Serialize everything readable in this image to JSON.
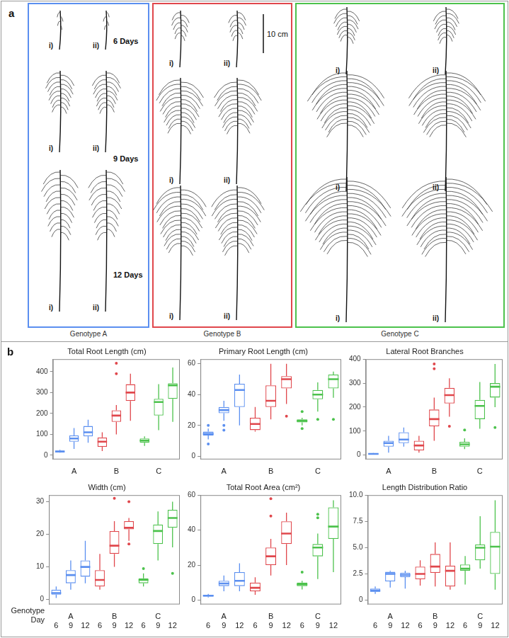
{
  "panel_a": {
    "letter": "a",
    "scale_bar": "10 cm",
    "days": [
      "6 Days",
      "9 Days",
      "12 Days"
    ],
    "replicates": [
      "i)",
      "ii)"
    ],
    "genotypes": [
      {
        "name": "Genotype A",
        "color": "#5b8ff0"
      },
      {
        "name": "Genotype B",
        "color": "#e0474c"
      },
      {
        "name": "Genotype C",
        "color": "#4cc24c"
      }
    ]
  },
  "panel_b": {
    "letter": "b",
    "x_key": {
      "genotype_label": "Genotype",
      "day_label": "Day",
      "days": [
        6,
        9,
        12,
        6,
        9,
        12,
        6,
        9,
        12
      ]
    }
  },
  "chart_data": [
    {
      "type": "boxplot",
      "title": "Total Root Length (cm)",
      "categories": [
        null,
        "A",
        null,
        null,
        "B",
        null,
        null,
        "C",
        null
      ],
      "colors": [
        "#5b8ff0",
        "#5b8ff0",
        "#5b8ff0",
        "#e0474c",
        "#e0474c",
        "#e0474c",
        "#4cc24c",
        "#4cc24c",
        "#4cc24c"
      ],
      "boxes": [
        {
          "min": 12,
          "q1": 15,
          "median": 18,
          "q3": 22,
          "max": 26,
          "outliers": []
        },
        {
          "min": 30,
          "q1": 65,
          "median": 80,
          "q3": 95,
          "max": 130,
          "outliers": []
        },
        {
          "min": 60,
          "q1": 90,
          "median": 110,
          "q3": 140,
          "max": 170,
          "outliers": []
        },
        {
          "min": 20,
          "q1": 40,
          "median": 65,
          "q3": 85,
          "max": 110,
          "outliers": []
        },
        {
          "min": 100,
          "q1": 160,
          "median": 190,
          "q3": 215,
          "max": 240,
          "outliers": [
            390,
            440
          ]
        },
        {
          "min": 165,
          "q1": 260,
          "median": 300,
          "q3": 340,
          "max": 390,
          "outliers": []
        },
        {
          "min": 45,
          "q1": 60,
          "median": 70,
          "q3": 80,
          "max": 90,
          "outliers": []
        },
        {
          "min": 120,
          "q1": 190,
          "median": 255,
          "q3": 270,
          "max": 340,
          "outliers": []
        },
        {
          "min": 160,
          "q1": 270,
          "median": 335,
          "q3": 345,
          "max": 420,
          "outliers": []
        }
      ],
      "ylim": [
        -20,
        460
      ],
      "yticks": [
        0,
        100,
        200,
        300,
        400
      ],
      "grid": false
    },
    {
      "type": "boxplot",
      "title": "Primary Root Length (cm)",
      "categories": [
        null,
        "A",
        null,
        null,
        "B",
        null,
        null,
        "C",
        null
      ],
      "colors": [
        "#5b8ff0",
        "#5b8ff0",
        "#5b8ff0",
        "#e0474c",
        "#e0474c",
        "#e0474c",
        "#4cc24c",
        "#4cc24c",
        "#4cc24c"
      ],
      "boxes": [
        {
          "min": 11,
          "q1": 13.5,
          "median": 14.5,
          "q3": 16,
          "max": 18,
          "outliers": [
            20,
            8
          ]
        },
        {
          "min": 23,
          "q1": 28,
          "median": 30,
          "q3": 32,
          "max": 36,
          "outliers": [
            20,
            17
          ]
        },
        {
          "min": 20,
          "q1": 32,
          "median": 43,
          "q3": 47,
          "max": 53,
          "outliers": []
        },
        {
          "min": 16,
          "q1": 17,
          "median": 21,
          "q3": 25,
          "max": 32,
          "outliers": []
        },
        {
          "min": 24,
          "q1": 32,
          "median": 36,
          "q3": 46,
          "max": 60,
          "outliers": []
        },
        {
          "min": 34,
          "q1": 44,
          "median": 50,
          "q3": 52,
          "max": 60,
          "outliers": [
            26
          ]
        },
        {
          "min": 20,
          "q1": 22,
          "median": 23,
          "q3": 24,
          "max": 25,
          "outliers": [
            29,
            18
          ]
        },
        {
          "min": 29,
          "q1": 37,
          "median": 40,
          "q3": 43,
          "max": 48,
          "outliers": [
            24
          ]
        },
        {
          "min": 38,
          "q1": 44,
          "median": 50,
          "q3": 53,
          "max": 55,
          "outliers": [
            24
          ]
        }
      ],
      "ylim": [
        -2,
        63
      ],
      "yticks": [
        0,
        20,
        40,
        60
      ],
      "grid": false
    },
    {
      "type": "boxplot",
      "title": "Lateral Root Branches",
      "categories": [
        null,
        "A",
        null,
        null,
        "B",
        null,
        null,
        "C",
        null
      ],
      "colors": [
        "#5b8ff0",
        "#5b8ff0",
        "#5b8ff0",
        "#e0474c",
        "#e0474c",
        "#e0474c",
        "#4cc24c",
        "#4cc24c",
        "#4cc24c"
      ],
      "boxes": [
        {
          "min": 2,
          "q1": 3,
          "median": 5,
          "q3": 7,
          "max": 9,
          "outliers": []
        },
        {
          "min": 10,
          "q1": 35,
          "median": 50,
          "q3": 60,
          "max": 80,
          "outliers": []
        },
        {
          "min": 35,
          "q1": 50,
          "median": 65,
          "q3": 95,
          "max": 115,
          "outliers": []
        },
        {
          "min": 10,
          "q1": 20,
          "median": 40,
          "q3": 60,
          "max": 80,
          "outliers": []
        },
        {
          "min": 60,
          "q1": 120,
          "median": 150,
          "q3": 190,
          "max": 240,
          "outliers": [
            360,
            380
          ]
        },
        {
          "min": 160,
          "q1": 215,
          "median": 250,
          "q3": 280,
          "max": 320,
          "outliers": [
            120
          ]
        },
        {
          "min": 25,
          "q1": 35,
          "median": 45,
          "q3": 55,
          "max": 70,
          "outliers": [
            105
          ]
        },
        {
          "min": 110,
          "q1": 150,
          "median": 205,
          "q3": 230,
          "max": 305,
          "outliers": []
        },
        {
          "min": 200,
          "q1": 240,
          "median": 285,
          "q3": 300,
          "max": 380,
          "outliers": [
            115
          ]
        }
      ],
      "ylim": [
        -18,
        400
      ],
      "yticks": [
        0,
        100,
        200,
        300,
        400
      ],
      "grid": false
    },
    {
      "type": "boxplot",
      "title": "Width (cm)",
      "categories": [
        null,
        "A",
        null,
        null,
        "B",
        null,
        null,
        "C",
        null
      ],
      "colors": [
        "#5b8ff0",
        "#5b8ff0",
        "#5b8ff0",
        "#e0474c",
        "#e0474c",
        "#e0474c",
        "#4cc24c",
        "#4cc24c",
        "#4cc24c"
      ],
      "boxes": [
        {
          "min": 0.5,
          "q1": 1.5,
          "median": 2,
          "q3": 3,
          "max": 4,
          "outliers": []
        },
        {
          "min": 3,
          "q1": 5,
          "median": 7.5,
          "q3": 9,
          "max": 12,
          "outliers": []
        },
        {
          "min": 5,
          "q1": 7,
          "median": 10,
          "q3": 12,
          "max": 18,
          "outliers": []
        },
        {
          "min": 3,
          "q1": 4,
          "median": 6,
          "q3": 9,
          "max": 14,
          "outliers": []
        },
        {
          "min": 10,
          "q1": 14,
          "median": 16.5,
          "q3": 21,
          "max": 24,
          "outliers": [
            31
          ]
        },
        {
          "min": 18,
          "q1": 21.5,
          "median": 22,
          "q3": 24,
          "max": 25,
          "outliers": [
            30,
            17
          ]
        },
        {
          "min": 4,
          "q1": 5,
          "median": 6,
          "q3": 6.5,
          "max": 8,
          "outliers": [
            9.5
          ]
        },
        {
          "min": 12,
          "q1": 17,
          "median": 21,
          "q3": 23,
          "max": 27,
          "outliers": []
        },
        {
          "min": 16,
          "q1": 22,
          "median": 25,
          "q3": 27.5,
          "max": 30,
          "outliers": [
            8
          ]
        }
      ],
      "ylim": [
        -1.5,
        32
      ],
      "yticks": [
        0,
        10,
        20,
        30
      ],
      "grid": false
    },
    {
      "type": "boxplot",
      "title": "Total Root Area (cm²)",
      "categories": [
        null,
        "A",
        null,
        null,
        "B",
        null,
        null,
        "C",
        null
      ],
      "colors": [
        "#5b8ff0",
        "#5b8ff0",
        "#5b8ff0",
        "#e0474c",
        "#e0474c",
        "#e0474c",
        "#4cc24c",
        "#4cc24c",
        "#4cc24c"
      ],
      "boxes": [
        {
          "min": 1.5,
          "q1": 2,
          "median": 2.5,
          "q3": 3,
          "max": 3.5,
          "outliers": []
        },
        {
          "min": 5,
          "q1": 8,
          "median": 9.5,
          "q3": 11,
          "max": 14,
          "outliers": []
        },
        {
          "min": 5,
          "q1": 8,
          "median": 11,
          "q3": 16,
          "max": 21,
          "outliers": []
        },
        {
          "min": 3,
          "q1": 5,
          "median": 7,
          "q3": 10,
          "max": 13,
          "outliers": []
        },
        {
          "min": 14,
          "q1": 20,
          "median": 25,
          "q3": 30,
          "max": 35,
          "outliers": [
            48,
            58
          ]
        },
        {
          "min": 20,
          "q1": 32,
          "median": 38,
          "q3": 45,
          "max": 50,
          "outliers": []
        },
        {
          "min": 6,
          "q1": 8,
          "median": 9,
          "q3": 10,
          "max": 11,
          "outliers": [
            16
          ]
        },
        {
          "min": 12,
          "q1": 25,
          "median": 30,
          "q3": 32,
          "max": 38,
          "outliers": [
            47,
            49
          ]
        },
        {
          "min": 16,
          "q1": 35,
          "median": 42,
          "q3": 53,
          "max": 57,
          "outliers": []
        }
      ],
      "ylim": [
        -2.5,
        60
      ],
      "yticks": [
        0,
        20,
        40,
        60
      ],
      "grid": false
    },
    {
      "type": "boxplot",
      "title": "Length Distribution Ratio",
      "categories": [
        null,
        "A",
        null,
        null,
        "B",
        null,
        null,
        "C",
        null
      ],
      "colors": [
        "#5b8ff0",
        "#5b8ff0",
        "#5b8ff0",
        "#e0474c",
        "#e0474c",
        "#e0474c",
        "#4cc24c",
        "#4cc24c",
        "#4cc24c"
      ],
      "boxes": [
        {
          "min": 0.6,
          "q1": 0.8,
          "median": 0.9,
          "q3": 1.1,
          "max": 1.3,
          "outliers": []
        },
        {
          "min": 1.2,
          "q1": 1.8,
          "median": 2.5,
          "q3": 2.7,
          "max": 2.8,
          "outliers": []
        },
        {
          "min": 1.1,
          "q1": 2.2,
          "median": 2.4,
          "q3": 2.6,
          "max": 2.8,
          "outliers": []
        },
        {
          "min": 1.4,
          "q1": 2,
          "median": 2.5,
          "q3": 3.2,
          "max": 3.8,
          "outliers": []
        },
        {
          "min": 1.3,
          "q1": 2.6,
          "median": 3.2,
          "q3": 4.4,
          "max": 5.5,
          "outliers": []
        },
        {
          "min": 1,
          "q1": 1.3,
          "median": 2.8,
          "q3": 3.3,
          "max": 5.5,
          "outliers": []
        },
        {
          "min": 1.5,
          "q1": 2.8,
          "median": 3,
          "q3": 3.4,
          "max": 4.2,
          "outliers": []
        },
        {
          "min": 3,
          "q1": 3.8,
          "median": 5,
          "q3": 5.3,
          "max": 8,
          "outliers": []
        },
        {
          "min": 1,
          "q1": 2.5,
          "median": 5.1,
          "q3": 6.5,
          "max": 9.5,
          "outliers": []
        }
      ],
      "ylim": [
        -0.4,
        10
      ],
      "yticks": [
        0,
        2.5,
        {
          "value": 5,
          "label": "5.0"
        },
        7.5,
        {
          "value": 10,
          "label": "10.0"
        }
      ],
      "grid": false
    }
  ]
}
